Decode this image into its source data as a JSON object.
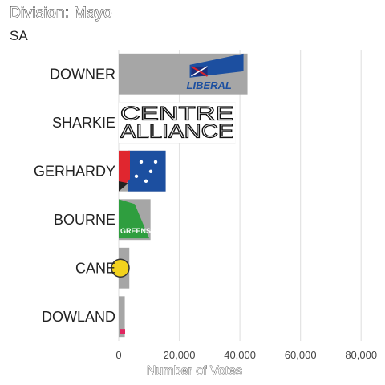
{
  "chart_data": {
    "type": "bar",
    "orientation": "horizontal",
    "title": "Division: Mayo",
    "subtitle": "SA",
    "xlabel": "Number of Votes",
    "ylabel": "",
    "categories": [
      "DOWNER",
      "SHARKIE",
      "GERHARDY",
      "BOURNE",
      "CANE",
      "DOWLAND"
    ],
    "values": [
      42500,
      38500,
      15500,
      10500,
      3500,
      2000
    ],
    "party_logos": [
      "LIBERAL",
      "CENTRE ALLIANCE",
      "",
      "GREENS",
      "",
      ""
    ],
    "xlim": [
      0,
      90000
    ],
    "xticks": [
      0,
      20000,
      40000,
      60000,
      80000
    ],
    "xtick_labels": [
      "0",
      "20,000",
      "40,000",
      "60,000",
      "80,000"
    ],
    "grid": true,
    "legend": "none",
    "colors": {
      "bar": "#a6a6a6",
      "grid": "#e3e3e3",
      "liberal_blue": "#1c4fa0",
      "greens_green": "#2f9e3f",
      "red": "#e0262f",
      "yellow": "#f2d21e"
    }
  }
}
